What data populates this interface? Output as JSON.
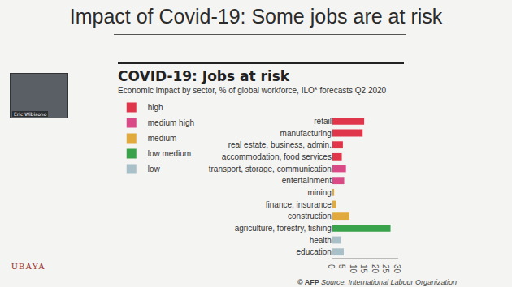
{
  "slide": {
    "title": "Impact of Covid-19: Some jobs are at risk",
    "presenter": "Eric Wibisono",
    "logo": "UBAYA"
  },
  "chart_data": {
    "type": "bar",
    "orientation": "horizontal",
    "title": "COVID-19: Jobs at risk",
    "subtitle": "Economic impact by sector, % of global workforce, ILO* forecasts Q2 2020",
    "annotations": [
      "© AFP",
      "Source: International Labour Organization"
    ],
    "categories": [
      "retail",
      "manufacturing",
      "real estate, business, admin.",
      "accommodation, food services",
      "transport, storage, communication",
      "entertainment",
      "mining",
      "finance, insurance",
      "construction",
      "agriculture, forestry, fishing",
      "health",
      "education"
    ],
    "series": [
      {
        "name": "high",
        "color": "#e0364c",
        "values": [
          14.5,
          13.8,
          4.8,
          4.3,
          null,
          null,
          null,
          null,
          null,
          null,
          null,
          null
        ]
      },
      {
        "name": "medium high",
        "color": "#d94a86",
        "values": [
          null,
          null,
          null,
          null,
          6.2,
          5.4,
          null,
          null,
          null,
          null,
          null,
          null
        ]
      },
      {
        "name": "medium",
        "color": "#e2aa3c",
        "values": [
          null,
          null,
          null,
          null,
          null,
          null,
          0.8,
          1.7,
          7.7,
          null,
          null,
          null
        ]
      },
      {
        "name": "low medium",
        "color": "#3aa24a",
        "values": [
          null,
          null,
          null,
          null,
          null,
          null,
          null,
          null,
          null,
          26.5,
          null,
          null
        ]
      },
      {
        "name": "low",
        "color": "#a9c0c9",
        "values": [
          null,
          null,
          null,
          null,
          null,
          null,
          null,
          null,
          null,
          null,
          4.0,
          5.2
        ]
      }
    ],
    "xlim": [
      0,
      30
    ],
    "xticks": [
      0,
      5,
      10,
      15,
      20,
      25,
      30
    ],
    "grid": false,
    "legend": "top left"
  }
}
